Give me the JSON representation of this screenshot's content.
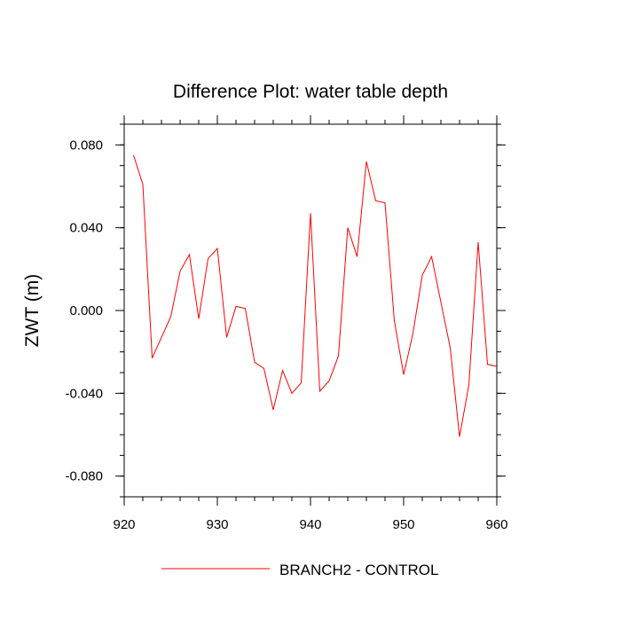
{
  "chart_data": {
    "type": "line",
    "title": "Difference Plot: water table depth",
    "xlabel": "",
    "ylabel": "ZWT  (m)",
    "xlim": [
      920,
      960
    ],
    "ylim": [
      -0.09,
      0.09
    ],
    "x_ticks": [
      {
        "value": 920,
        "label": "920"
      },
      {
        "value": 930,
        "label": "930"
      },
      {
        "value": 940,
        "label": "940"
      },
      {
        "value": 950,
        "label": "950"
      },
      {
        "value": 960,
        "label": "960"
      }
    ],
    "y_ticks": [
      {
        "value": -0.08,
        "label": "-0.080"
      },
      {
        "value": -0.04,
        "label": "-0.040"
      },
      {
        "value": 0.0,
        "label": "0.000"
      },
      {
        "value": 0.04,
        "label": "0.040"
      },
      {
        "value": 0.08,
        "label": "0.080"
      }
    ],
    "x_minor_step": 2,
    "y_minor_step": 0.01,
    "grid": false,
    "legend_position": "bottom-center",
    "series": [
      {
        "name": "BRANCH2 - CONTROL",
        "color": "#ff0000",
        "x": [
          921,
          922,
          923,
          924,
          925,
          926,
          927,
          928,
          929,
          930,
          931,
          932,
          933,
          934,
          935,
          936,
          937,
          938,
          939,
          940,
          941,
          942,
          943,
          944,
          945,
          946,
          947,
          948,
          949,
          950,
          951,
          952,
          953,
          954,
          955,
          956,
          957,
          958,
          959,
          960
        ],
        "y": [
          0.075,
          0.061,
          -0.023,
          -0.013,
          -0.003,
          0.019,
          0.027,
          -0.004,
          0.025,
          0.03,
          -0.013,
          0.002,
          0.001,
          -0.025,
          -0.028,
          -0.048,
          -0.029,
          -0.04,
          -0.035,
          0.047,
          -0.039,
          -0.034,
          -0.022,
          0.04,
          0.026,
          0.072,
          0.053,
          0.052,
          -0.005,
          -0.031,
          -0.011,
          0.017,
          0.026,
          0.004,
          -0.018,
          -0.061,
          -0.036,
          0.033,
          -0.026,
          -0.027
        ]
      }
    ]
  }
}
